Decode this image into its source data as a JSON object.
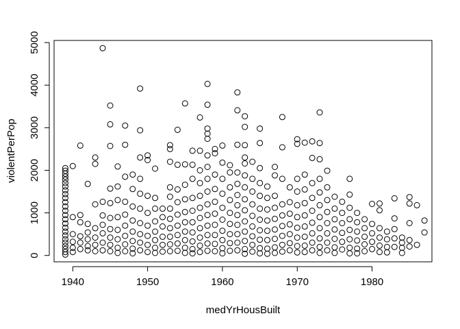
{
  "chart_data": {
    "type": "scatter",
    "title": "",
    "xlabel": "medYrHousBuilt",
    "ylabel": "violentPerPop",
    "xlim": [
      1937.5,
      1988
    ],
    "ylim": [
      -150,
      5050
    ],
    "xticks": [
      1940,
      1950,
      1960,
      1970,
      1980
    ],
    "yticks": [
      0,
      1000,
      2000,
      3000,
      4000,
      5000
    ],
    "grid": false,
    "marker": "open-circle",
    "points": [
      [
        1939,
        2050
      ],
      [
        1939,
        1990
      ],
      [
        1939,
        1920
      ],
      [
        1939,
        1850
      ],
      [
        1939,
        1780
      ],
      [
        1939,
        1700
      ],
      [
        1939,
        1620
      ],
      [
        1939,
        1530
      ],
      [
        1939,
        1440
      ],
      [
        1939,
        1350
      ],
      [
        1939,
        1250
      ],
      [
        1939,
        1150
      ],
      [
        1939,
        1050
      ],
      [
        1939,
        950
      ],
      [
        1939,
        850
      ],
      [
        1939,
        750
      ],
      [
        1939,
        650
      ],
      [
        1939,
        560
      ],
      [
        1939,
        470
      ],
      [
        1939,
        380
      ],
      [
        1939,
        300
      ],
      [
        1939,
        220
      ],
      [
        1939,
        150
      ],
      [
        1939,
        80
      ],
      [
        1939,
        20
      ],
      [
        1940,
        2100
      ],
      [
        1940,
        900
      ],
      [
        1940,
        500
      ],
      [
        1940,
        320
      ],
      [
        1940,
        180
      ],
      [
        1940,
        80
      ],
      [
        1941,
        2580
      ],
      [
        1941,
        950
      ],
      [
        1941,
        780
      ],
      [
        1941,
        450
      ],
      [
        1941,
        300
      ],
      [
        1941,
        150
      ],
      [
        1942,
        1680
      ],
      [
        1942,
        740
      ],
      [
        1942,
        540
      ],
      [
        1942,
        380
      ],
      [
        1942,
        220
      ],
      [
        1942,
        120
      ],
      [
        1943,
        2300
      ],
      [
        1943,
        2150
      ],
      [
        1943,
        1200
      ],
      [
        1943,
        640
      ],
      [
        1943,
        420
      ],
      [
        1943,
        250
      ],
      [
        1943,
        100
      ],
      [
        1944,
        4870
      ],
      [
        1944,
        1260
      ],
      [
        1944,
        940
      ],
      [
        1944,
        720
      ],
      [
        1944,
        520
      ],
      [
        1944,
        300
      ],
      [
        1944,
        120
      ],
      [
        1945,
        3520
      ],
      [
        1945,
        3080
      ],
      [
        1945,
        2570
      ],
      [
        1945,
        1570
      ],
      [
        1945,
        1230
      ],
      [
        1945,
        880
      ],
      [
        1945,
        620
      ],
      [
        1945,
        420
      ],
      [
        1945,
        250
      ],
      [
        1945,
        100
      ],
      [
        1946,
        2090
      ],
      [
        1946,
        1620
      ],
      [
        1946,
        1300
      ],
      [
        1946,
        900
      ],
      [
        1946,
        600
      ],
      [
        1946,
        380
      ],
      [
        1946,
        180
      ],
      [
        1946,
        60
      ],
      [
        1947,
        3050
      ],
      [
        1947,
        2600
      ],
      [
        1947,
        1850
      ],
      [
        1947,
        1260
      ],
      [
        1947,
        960
      ],
      [
        1947,
        700
      ],
      [
        1947,
        460
      ],
      [
        1947,
        260
      ],
      [
        1947,
        100
      ],
      [
        1948,
        1900
      ],
      [
        1948,
        1560
      ],
      [
        1948,
        1150
      ],
      [
        1948,
        820
      ],
      [
        1948,
        560
      ],
      [
        1948,
        340
      ],
      [
        1948,
        160
      ],
      [
        1948,
        50
      ],
      [
        1949,
        3920
      ],
      [
        1949,
        2940
      ],
      [
        1949,
        2300
      ],
      [
        1949,
        1800
      ],
      [
        1949,
        1450
      ],
      [
        1949,
        1100
      ],
      [
        1949,
        760
      ],
      [
        1949,
        500
      ],
      [
        1949,
        300
      ],
      [
        1949,
        120
      ],
      [
        1950,
        2350
      ],
      [
        1950,
        2240
      ],
      [
        1950,
        1400
      ],
      [
        1950,
        1000
      ],
      [
        1950,
        700
      ],
      [
        1950,
        460
      ],
      [
        1950,
        250
      ],
      [
        1950,
        80
      ],
      [
        1951,
        2040
      ],
      [
        1951,
        1350
      ],
      [
        1951,
        1100
      ],
      [
        1951,
        800
      ],
      [
        1951,
        560
      ],
      [
        1951,
        360
      ],
      [
        1951,
        180
      ],
      [
        1951,
        60
      ],
      [
        1952,
        1100
      ],
      [
        1952,
        900
      ],
      [
        1952,
        680
      ],
      [
        1952,
        440
      ],
      [
        1952,
        250
      ],
      [
        1952,
        90
      ],
      [
        1953,
        2590
      ],
      [
        1953,
        2500
      ],
      [
        1953,
        2200
      ],
      [
        1953,
        1600
      ],
      [
        1953,
        1380
      ],
      [
        1953,
        1100
      ],
      [
        1953,
        860
      ],
      [
        1953,
        640
      ],
      [
        1953,
        440
      ],
      [
        1953,
        260
      ],
      [
        1953,
        100
      ],
      [
        1954,
        2950
      ],
      [
        1954,
        2130
      ],
      [
        1954,
        1550
      ],
      [
        1954,
        1250
      ],
      [
        1954,
        960
      ],
      [
        1954,
        700
      ],
      [
        1954,
        480
      ],
      [
        1954,
        280
      ],
      [
        1954,
        110
      ],
      [
        1955,
        3570
      ],
      [
        1955,
        2140
      ],
      [
        1955,
        1660
      ],
      [
        1955,
        1320
      ],
      [
        1955,
        1020
      ],
      [
        1955,
        780
      ],
      [
        1955,
        560
      ],
      [
        1955,
        360
      ],
      [
        1955,
        180
      ],
      [
        1955,
        60
      ],
      [
        1956,
        2460
      ],
      [
        1956,
        2130
      ],
      [
        1956,
        1800
      ],
      [
        1956,
        1350
      ],
      [
        1956,
        1050
      ],
      [
        1956,
        780
      ],
      [
        1956,
        540
      ],
      [
        1956,
        330
      ],
      [
        1956,
        150
      ],
      [
        1956,
        50
      ],
      [
        1957,
        3240
      ],
      [
        1957,
        2460
      ],
      [
        1957,
        2000
      ],
      [
        1957,
        1700
      ],
      [
        1957,
        1400
      ],
      [
        1957,
        1120
      ],
      [
        1957,
        880
      ],
      [
        1957,
        640
      ],
      [
        1957,
        420
      ],
      [
        1957,
        230
      ],
      [
        1957,
        80
      ],
      [
        1958,
        4030
      ],
      [
        1958,
        3540
      ],
      [
        1958,
        2980
      ],
      [
        1958,
        2860
      ],
      [
        1958,
        2740
      ],
      [
        1958,
        2350
      ],
      [
        1958,
        2080
      ],
      [
        1958,
        1800
      ],
      [
        1958,
        1500
      ],
      [
        1958,
        1200
      ],
      [
        1958,
        950
      ],
      [
        1958,
        700
      ],
      [
        1958,
        480
      ],
      [
        1958,
        280
      ],
      [
        1958,
        110
      ],
      [
        1959,
        2500
      ],
      [
        1959,
        2400
      ],
      [
        1959,
        1900
      ],
      [
        1959,
        1560
      ],
      [
        1959,
        1260
      ],
      [
        1959,
        980
      ],
      [
        1959,
        720
      ],
      [
        1959,
        480
      ],
      [
        1959,
        270
      ],
      [
        1959,
        100
      ],
      [
        1960,
        2580
      ],
      [
        1960,
        2180
      ],
      [
        1960,
        1800
      ],
      [
        1960,
        1450
      ],
      [
        1960,
        1120
      ],
      [
        1960,
        840
      ],
      [
        1960,
        580
      ],
      [
        1960,
        360
      ],
      [
        1960,
        170
      ],
      [
        1960,
        50
      ],
      [
        1961,
        2120
      ],
      [
        1961,
        1950
      ],
      [
        1961,
        1600
      ],
      [
        1961,
        1300
      ],
      [
        1961,
        1000
      ],
      [
        1961,
        740
      ],
      [
        1961,
        500
      ],
      [
        1961,
        290
      ],
      [
        1961,
        110
      ],
      [
        1962,
        3830
      ],
      [
        1962,
        3410
      ],
      [
        1962,
        2600
      ],
      [
        1962,
        1950
      ],
      [
        1962,
        1680
      ],
      [
        1962,
        1420
      ],
      [
        1962,
        1180
      ],
      [
        1962,
        950
      ],
      [
        1962,
        720
      ],
      [
        1962,
        500
      ],
      [
        1962,
        300
      ],
      [
        1962,
        120
      ],
      [
        1963,
        3270
      ],
      [
        1963,
        3020
      ],
      [
        1963,
        2590
      ],
      [
        1963,
        2300
      ],
      [
        1963,
        2160
      ],
      [
        1963,
        1880
      ],
      [
        1963,
        1600
      ],
      [
        1963,
        1320
      ],
      [
        1963,
        1060
      ],
      [
        1963,
        800
      ],
      [
        1963,
        560
      ],
      [
        1963,
        340
      ],
      [
        1963,
        150
      ],
      [
        1963,
        40
      ],
      [
        1964,
        2200
      ],
      [
        1964,
        1800
      ],
      [
        1964,
        1500
      ],
      [
        1964,
        1200
      ],
      [
        1964,
        930
      ],
      [
        1964,
        680
      ],
      [
        1964,
        450
      ],
      [
        1964,
        250
      ],
      [
        1964,
        90
      ],
      [
        1965,
        2980
      ],
      [
        1965,
        2640
      ],
      [
        1965,
        2050
      ],
      [
        1965,
        1700
      ],
      [
        1965,
        1400
      ],
      [
        1965,
        1100
      ],
      [
        1965,
        840
      ],
      [
        1965,
        590
      ],
      [
        1965,
        370
      ],
      [
        1965,
        170
      ],
      [
        1965,
        50
      ],
      [
        1966,
        1620
      ],
      [
        1966,
        1350
      ],
      [
        1966,
        1080
      ],
      [
        1966,
        820
      ],
      [
        1966,
        580
      ],
      [
        1966,
        360
      ],
      [
        1966,
        160
      ],
      [
        1966,
        40
      ],
      [
        1967,
        2080
      ],
      [
        1967,
        1880
      ],
      [
        1967,
        1400
      ],
      [
        1967,
        1120
      ],
      [
        1967,
        860
      ],
      [
        1967,
        610
      ],
      [
        1967,
        390
      ],
      [
        1967,
        190
      ],
      [
        1967,
        60
      ],
      [
        1968,
        3250
      ],
      [
        1968,
        2540
      ],
      [
        1968,
        1800
      ],
      [
        1968,
        1200
      ],
      [
        1968,
        940
      ],
      [
        1968,
        690
      ],
      [
        1968,
        460
      ],
      [
        1968,
        250
      ],
      [
        1968,
        90
      ],
      [
        1969,
        1600
      ],
      [
        1969,
        1250
      ],
      [
        1969,
        980
      ],
      [
        1969,
        730
      ],
      [
        1969,
        500
      ],
      [
        1969,
        290
      ],
      [
        1969,
        120
      ],
      [
        1970,
        2730
      ],
      [
        1970,
        2620
      ],
      [
        1970,
        1800
      ],
      [
        1970,
        1500
      ],
      [
        1970,
        1180
      ],
      [
        1970,
        900
      ],
      [
        1970,
        650
      ],
      [
        1970,
        420
      ],
      [
        1970,
        220
      ],
      [
        1970,
        70
      ],
      [
        1971,
        2650
      ],
      [
        1971,
        1900
      ],
      [
        1971,
        1550
      ],
      [
        1971,
        1230
      ],
      [
        1971,
        940
      ],
      [
        1971,
        680
      ],
      [
        1971,
        440
      ],
      [
        1971,
        230
      ],
      [
        1971,
        80
      ],
      [
        1972,
        2680
      ],
      [
        1972,
        2290
      ],
      [
        1972,
        1700
      ],
      [
        1972,
        1350
      ],
      [
        1972,
        1050
      ],
      [
        1972,
        770
      ],
      [
        1972,
        520
      ],
      [
        1972,
        300
      ],
      [
        1972,
        120
      ],
      [
        1973,
        3360
      ],
      [
        1973,
        2640
      ],
      [
        1973,
        2260
      ],
      [
        1973,
        1800
      ],
      [
        1973,
        1480
      ],
      [
        1973,
        1180
      ],
      [
        1973,
        900
      ],
      [
        1973,
        640
      ],
      [
        1973,
        400
      ],
      [
        1973,
        200
      ],
      [
        1973,
        60
      ],
      [
        1974,
        1990
      ],
      [
        1974,
        1600
      ],
      [
        1974,
        1300
      ],
      [
        1974,
        1020
      ],
      [
        1974,
        760
      ],
      [
        1974,
        520
      ],
      [
        1974,
        300
      ],
      [
        1974,
        120
      ],
      [
        1975,
        1380
      ],
      [
        1975,
        1100
      ],
      [
        1975,
        850
      ],
      [
        1975,
        610
      ],
      [
        1975,
        390
      ],
      [
        1975,
        190
      ],
      [
        1975,
        60
      ],
      [
        1976,
        1260
      ],
      [
        1976,
        1000
      ],
      [
        1976,
        760
      ],
      [
        1976,
        530
      ],
      [
        1976,
        320
      ],
      [
        1976,
        140
      ],
      [
        1977,
        1800
      ],
      [
        1977,
        1430
      ],
      [
        1977,
        1120
      ],
      [
        1977,
        850
      ],
      [
        1977,
        600
      ],
      [
        1977,
        380
      ],
      [
        1977,
        180
      ],
      [
        1977,
        50
      ],
      [
        1978,
        1000
      ],
      [
        1978,
        780
      ],
      [
        1978,
        560
      ],
      [
        1978,
        350
      ],
      [
        1978,
        160
      ],
      [
        1978,
        50
      ],
      [
        1979,
        850
      ],
      [
        1979,
        640
      ],
      [
        1979,
        440
      ],
      [
        1979,
        260
      ],
      [
        1979,
        100
      ],
      [
        1980,
        1210
      ],
      [
        1980,
        740
      ],
      [
        1980,
        520
      ],
      [
        1980,
        320
      ],
      [
        1980,
        150
      ],
      [
        1981,
        1220
      ],
      [
        1981,
        1060
      ],
      [
        1981,
        640
      ],
      [
        1981,
        420
      ],
      [
        1981,
        230
      ],
      [
        1981,
        80
      ],
      [
        1982,
        560
      ],
      [
        1982,
        380
      ],
      [
        1982,
        200
      ],
      [
        1982,
        70
      ],
      [
        1983,
        1340
      ],
      [
        1983,
        870
      ],
      [
        1983,
        620
      ],
      [
        1983,
        400
      ],
      [
        1983,
        200
      ],
      [
        1984,
        420
      ],
      [
        1984,
        300
      ],
      [
        1984,
        180
      ],
      [
        1984,
        60
      ],
      [
        1985,
        1370
      ],
      [
        1985,
        1220
      ],
      [
        1985,
        760
      ],
      [
        1985,
        360
      ],
      [
        1985,
        210
      ],
      [
        1986,
        1180
      ],
      [
        1986,
        250
      ],
      [
        1987,
        820
      ],
      [
        1987,
        540
      ]
    ]
  }
}
